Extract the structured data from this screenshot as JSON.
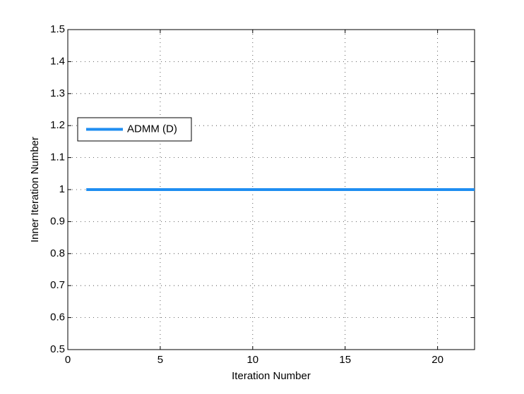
{
  "chart_data": {
    "type": "line",
    "x_label": "Iteration Number",
    "y_label": "Inner Iteration Number",
    "x": [
      1,
      2,
      3,
      4,
      5,
      6,
      7,
      8,
      9,
      10,
      11,
      12,
      13,
      14,
      15,
      16,
      17,
      18,
      19,
      20,
      21,
      22
    ],
    "series": [
      {
        "name": "ADMM (D)",
        "color": "#1f8ef1",
        "values": [
          1,
          1,
          1,
          1,
          1,
          1,
          1,
          1,
          1,
          1,
          1,
          1,
          1,
          1,
          1,
          1,
          1,
          1,
          1,
          1,
          1,
          1
        ]
      }
    ],
    "xlim": [
      0,
      22
    ],
    "xticks": [
      0,
      5,
      10,
      15,
      20
    ],
    "ylim": [
      0.5,
      1.5
    ],
    "yticks": [
      0.5,
      0.6,
      0.7,
      0.8,
      0.9,
      1,
      1.1,
      1.2,
      1.3,
      1.4,
      1.5
    ],
    "grid": true
  }
}
